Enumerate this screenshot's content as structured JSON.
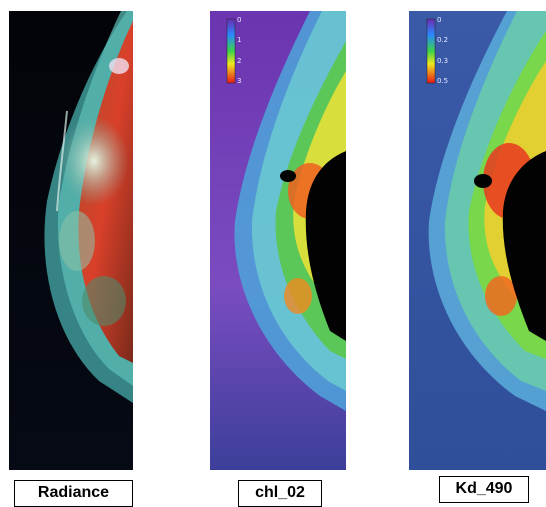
{
  "panels": [
    {
      "id": "radiance",
      "label": "Radiance"
    },
    {
      "id": "chl",
      "label": "chl_02",
      "scale_ticks": [
        "0",
        "1",
        "2",
        "3"
      ]
    },
    {
      "id": "kd",
      "label": "Kd_490",
      "scale_ticks": [
        "0",
        "0.2",
        "0.3",
        "0.5"
      ]
    }
  ],
  "colors": {
    "space": "#05060d",
    "chl_ocean": "#7a3fb8",
    "kd_ocean": "#3a5fa8",
    "land_black": "#020202"
  }
}
